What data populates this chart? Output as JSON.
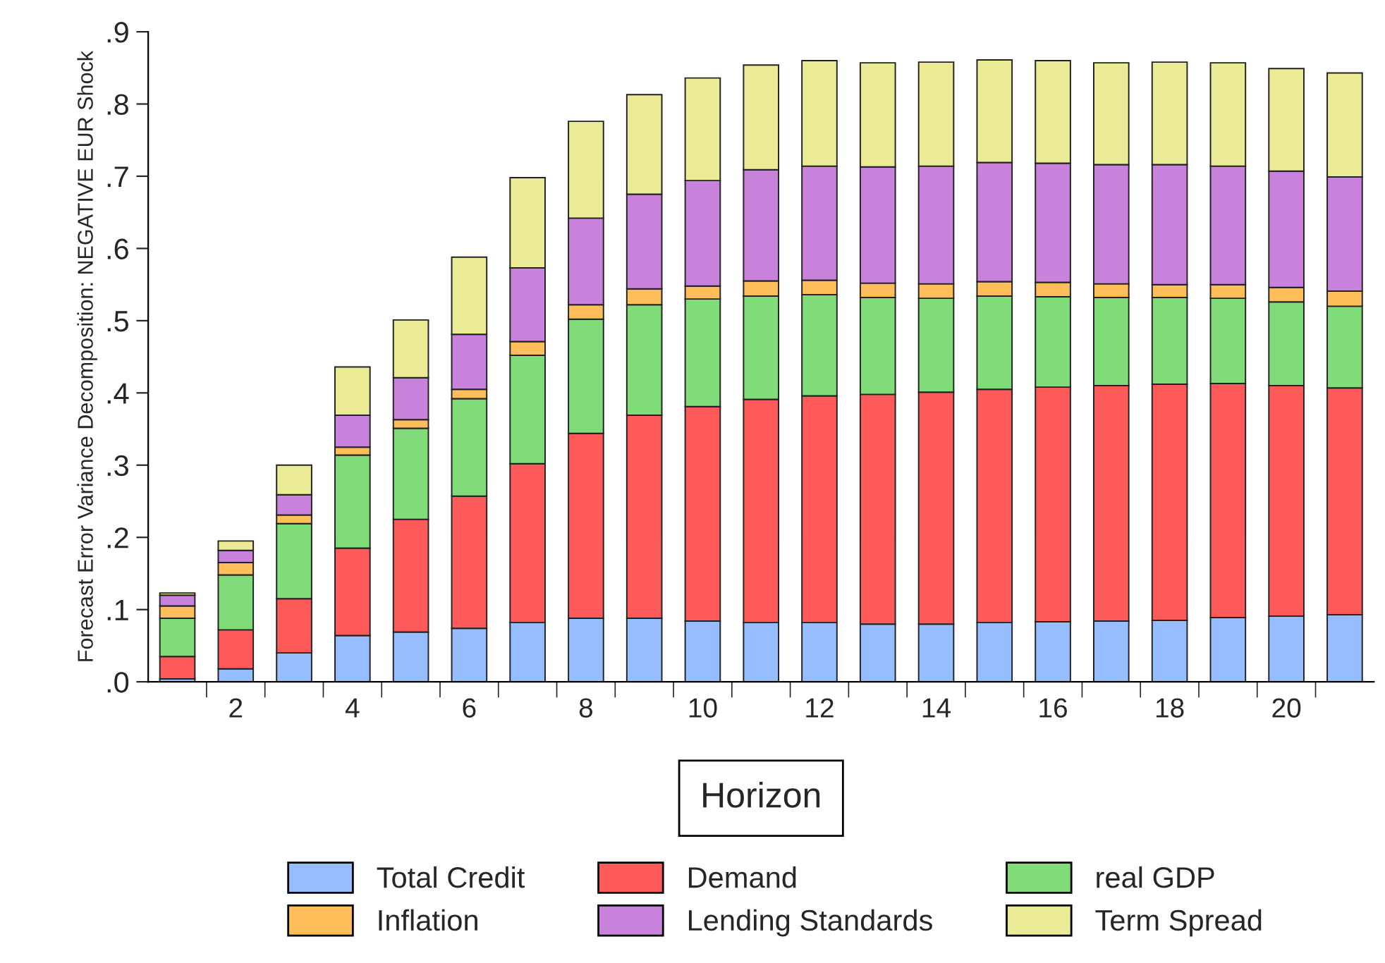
{
  "chart_data": {
    "type": "bar",
    "stacked": true,
    "ylabel": "Forecast Error Variance Decomposition: NEGATIVE EUR Shock",
    "xlabel": "Horizon",
    "categories": [
      null,
      "2",
      null,
      "4",
      null,
      "6",
      null,
      "8",
      null,
      "10",
      null,
      "12",
      null,
      "14",
      null,
      "16",
      null,
      "18",
      null,
      "20",
      null
    ],
    "ylim": [
      0,
      0.9
    ],
    "yticks": [
      {
        "value": 0,
        "label": ".0"
      },
      {
        "value": 0.1,
        "label": ".1"
      },
      {
        "value": 0.2,
        "label": ".2"
      },
      {
        "value": 0.3,
        "label": ".3"
      },
      {
        "value": 0.4,
        "label": ".4"
      },
      {
        "value": 0.5,
        "label": ".5"
      },
      {
        "value": 0.6,
        "label": ".6"
      },
      {
        "value": 0.7,
        "label": ".7"
      },
      {
        "value": 0.8,
        "label": ".8"
      },
      {
        "value": 0.9,
        "label": ".9"
      }
    ],
    "grid": false,
    "legend": "bottom",
    "series": [
      {
        "name": "Total Credit",
        "color": "#95bdff",
        "values": [
          0.004,
          0.018,
          0.04,
          0.064,
          0.069,
          0.074,
          0.082,
          0.088,
          0.088,
          0.084,
          0.082,
          0.082,
          0.08,
          0.08,
          0.082,
          0.083,
          0.084,
          0.085,
          0.089,
          0.091,
          0.093
        ]
      },
      {
        "name": "Demand",
        "color": "#ff5a5a",
        "values": [
          0.031,
          0.054,
          0.075,
          0.121,
          0.156,
          0.183,
          0.22,
          0.256,
          0.281,
          0.297,
          0.309,
          0.314,
          0.318,
          0.321,
          0.323,
          0.325,
          0.326,
          0.327,
          0.324,
          0.319,
          0.314
        ]
      },
      {
        "name": "real GDP",
        "color": "#80dc78",
        "values": [
          0.053,
          0.076,
          0.104,
          0.129,
          0.126,
          0.135,
          0.15,
          0.158,
          0.153,
          0.149,
          0.143,
          0.14,
          0.134,
          0.13,
          0.129,
          0.125,
          0.122,
          0.12,
          0.118,
          0.116,
          0.113
        ]
      },
      {
        "name": "Inflation",
        "color": "#ffbe5a",
        "values": [
          0.017,
          0.017,
          0.012,
          0.011,
          0.012,
          0.013,
          0.019,
          0.02,
          0.022,
          0.018,
          0.021,
          0.02,
          0.02,
          0.02,
          0.02,
          0.02,
          0.019,
          0.018,
          0.019,
          0.02,
          0.021
        ]
      },
      {
        "name": "Lending Standards",
        "color": "#c882dc",
        "values": [
          0.015,
          0.017,
          0.028,
          0.044,
          0.058,
          0.076,
          0.102,
          0.12,
          0.131,
          0.146,
          0.154,
          0.158,
          0.161,
          0.163,
          0.165,
          0.165,
          0.165,
          0.166,
          0.164,
          0.161,
          0.158
        ]
      },
      {
        "name": "Term Spread",
        "color": "#ebeb96",
        "values": [
          0.003,
          0.013,
          0.041,
          0.067,
          0.08,
          0.107,
          0.125,
          0.134,
          0.138,
          0.142,
          0.145,
          0.146,
          0.144,
          0.144,
          0.142,
          0.142,
          0.141,
          0.142,
          0.143,
          0.142,
          0.144
        ]
      }
    ]
  }
}
